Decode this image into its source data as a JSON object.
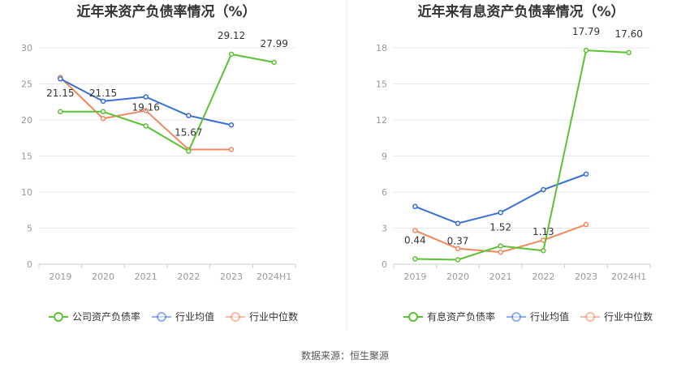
{
  "source_text": "数据来源：恒生聚源",
  "colors": {
    "company": "#5cc133",
    "avg": "#3a6fd8",
    "median": "#f0875f",
    "grid": "#e8e8e8",
    "axis": "#cccccc"
  },
  "chart_data": [
    {
      "type": "line",
      "title": "近年来资产负债率情况（%）",
      "categories": [
        "2019",
        "2020",
        "2021",
        "2022",
        "2023",
        "2024H1"
      ],
      "ylim": [
        0,
        30
      ],
      "yticks": [
        0,
        5,
        10,
        15,
        20,
        25,
        30
      ],
      "grid": true,
      "legend_position": "bottom",
      "series": [
        {
          "name": "公司资产负债率",
          "key": "company",
          "values": [
            21.15,
            21.15,
            19.16,
            15.67,
            29.12,
            27.99
          ],
          "labels": [
            "21.15",
            "21.15",
            "19.16",
            "15.67",
            "29.12",
            "27.99"
          ]
        },
        {
          "name": "行业均值",
          "key": "avg",
          "values": [
            25.7,
            22.6,
            23.2,
            20.6,
            19.3,
            null
          ]
        },
        {
          "name": "行业中位数",
          "key": "median",
          "values": [
            25.9,
            20.2,
            21.3,
            15.9,
            15.9,
            null
          ]
        }
      ]
    },
    {
      "type": "line",
      "title": "近年来有息资产负债率情况（%）",
      "categories": [
        "2019",
        "2020",
        "2021",
        "2022",
        "2023",
        "2024H1"
      ],
      "ylim": [
        0,
        18
      ],
      "yticks": [
        0,
        3,
        6,
        9,
        12,
        15,
        18
      ],
      "grid": true,
      "legend_position": "bottom",
      "series": [
        {
          "name": "有息资产负债率",
          "key": "company",
          "values": [
            0.44,
            0.37,
            1.52,
            1.13,
            17.79,
            17.6
          ],
          "labels": [
            "0.44",
            "0.37",
            "1.52",
            "1.13",
            "17.79",
            "17.60"
          ]
        },
        {
          "name": "行业均值",
          "key": "avg",
          "values": [
            4.8,
            3.4,
            4.3,
            6.2,
            7.5,
            null
          ]
        },
        {
          "name": "行业中位数",
          "key": "median",
          "values": [
            2.8,
            1.3,
            1.0,
            2.0,
            3.3,
            null
          ]
        }
      ]
    }
  ]
}
